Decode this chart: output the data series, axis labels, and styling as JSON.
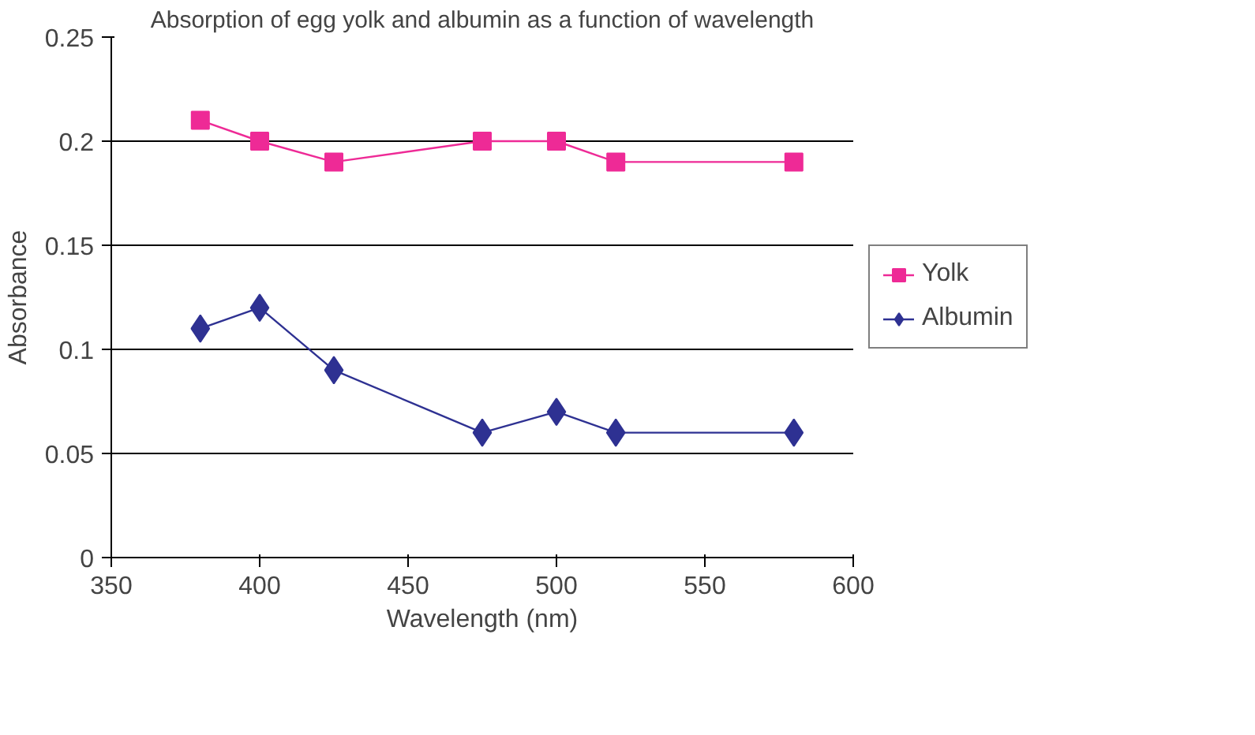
{
  "chart_data": {
    "type": "line",
    "title": "Absorption of egg yolk and albumin as a function of wavelength",
    "xlabel": "Wavelength (nm)",
    "ylabel": "Absorbance",
    "x": [
      380,
      400,
      425,
      475,
      500,
      520,
      580
    ],
    "series": [
      {
        "name": "Yolk",
        "color": "#ee2a96",
        "marker": "square",
        "values": [
          0.21,
          0.2,
          0.19,
          0.2,
          0.2,
          0.19,
          0.19
        ]
      },
      {
        "name": "Albumin",
        "color": "#2e3192",
        "marker": "diamond",
        "values": [
          0.11,
          0.12,
          0.09,
          0.06,
          0.07,
          0.06,
          0.06
        ]
      }
    ],
    "xlim": [
      350,
      600
    ],
    "xticks": [
      350,
      400,
      450,
      500,
      550,
      600
    ],
    "ylim": [
      0,
      0.25
    ],
    "yticks": [
      0,
      0.05,
      0.1,
      0.15,
      0.2,
      0.25
    ],
    "grid": "y",
    "legend": "right",
    "line_style": "solid"
  }
}
